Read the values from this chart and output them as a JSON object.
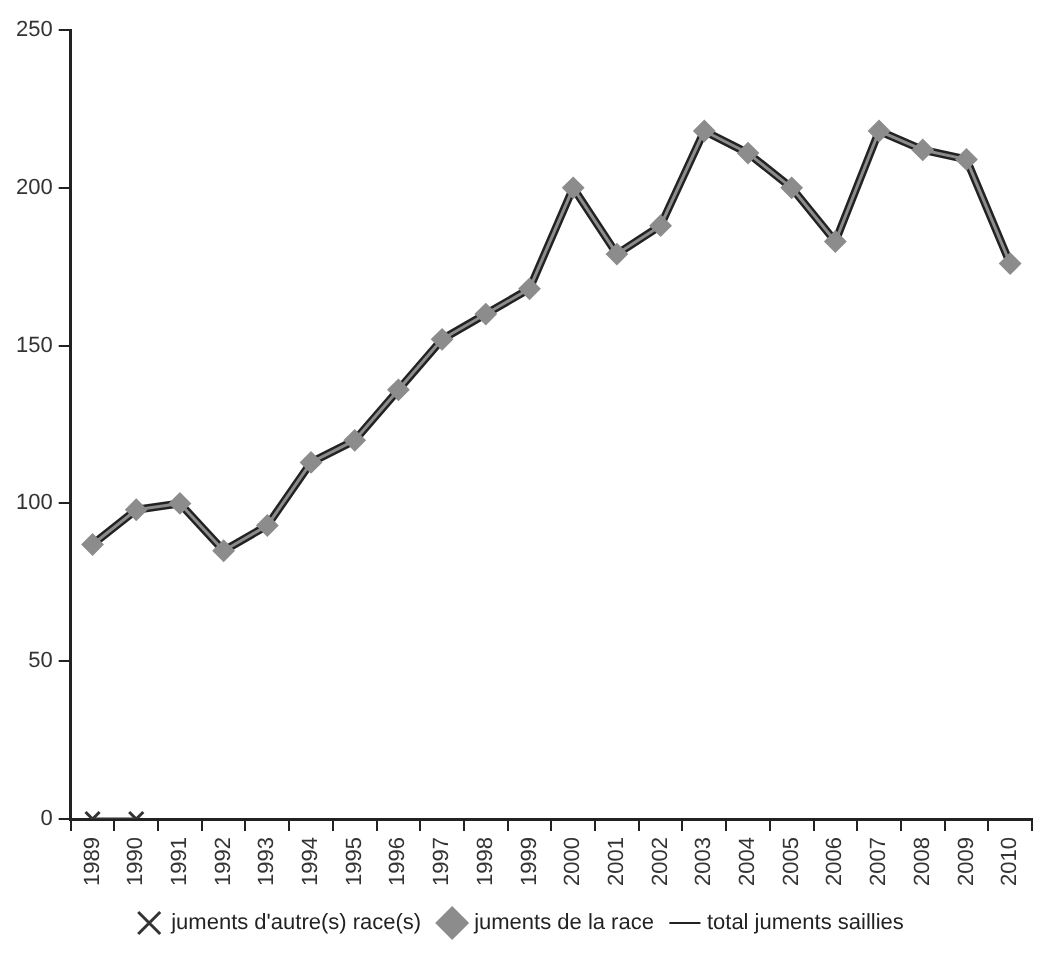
{
  "chart_data": {
    "type": "line",
    "categories": [
      "1989",
      "1990",
      "1991",
      "1992",
      "1993",
      "1994",
      "1995",
      "1996",
      "1997",
      "1998",
      "1999",
      "2000",
      "2001",
      "2002",
      "2003",
      "2004",
      "2005",
      "2006",
      "2007",
      "2008",
      "2009",
      "2010"
    ],
    "series": [
      {
        "name": "juments d'autre(s) race(s)",
        "color": "#333333",
        "marker": "cross",
        "values": [
          0,
          0,
          null,
          null,
          null,
          null,
          null,
          null,
          null,
          null,
          null,
          null,
          null,
          null,
          null,
          null,
          null,
          null,
          null,
          null,
          null,
          null
        ]
      },
      {
        "name": "juments de la race",
        "color": "#8c8c8c",
        "marker": "diamond",
        "values": [
          87,
          98,
          100,
          85,
          93,
          113,
          120,
          136,
          152,
          160,
          168,
          200,
          179,
          188,
          218,
          211,
          200,
          183,
          218,
          212,
          209,
          176
        ]
      },
      {
        "name": "total juments saillies",
        "color": "#222222",
        "marker": "none",
        "values": [
          87,
          98,
          100,
          85,
          93,
          113,
          120,
          136,
          152,
          160,
          168,
          200,
          179,
          188,
          218,
          211,
          200,
          183,
          218,
          212,
          209,
          176
        ]
      }
    ],
    "ylim": [
      0,
      250
    ],
    "yticks": [
      0,
      50,
      100,
      150,
      200,
      250
    ],
    "grid": false,
    "legend": "bottom"
  }
}
